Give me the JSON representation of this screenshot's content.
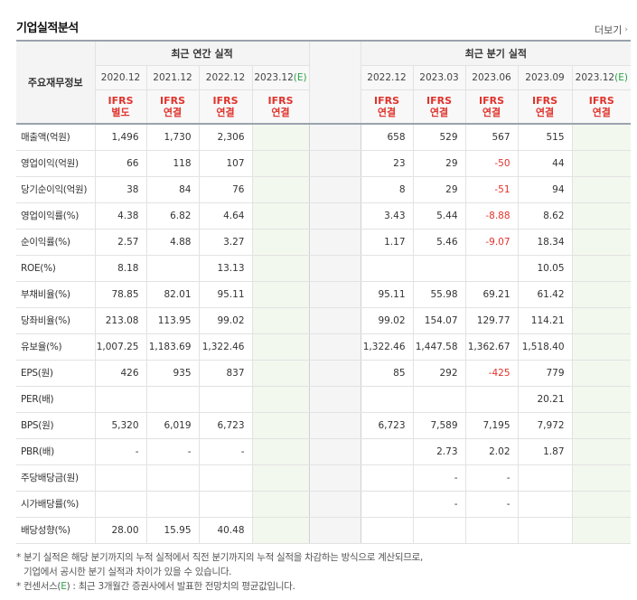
{
  "header": {
    "title": "기업실적분석",
    "more_label": "더보기"
  },
  "table": {
    "label_header": "주요재무정보",
    "annual_group": "최근 연간 실적",
    "quarterly_group": "최근 분기 실적",
    "annual_periods": [
      "2020.12",
      "2021.12",
      "2022.12",
      "2023.12"
    ],
    "annual_estimate_suffix": "(E)",
    "quarterly_periods": [
      "2022.12",
      "2023.03",
      "2023.06",
      "2023.09",
      "2023.12"
    ],
    "quarterly_estimate_suffix": "(E)",
    "annual_standards": [
      [
        "IFRS",
        "별도"
      ],
      [
        "IFRS",
        "연결"
      ],
      [
        "IFRS",
        "연결"
      ],
      [
        "IFRS",
        "연결"
      ]
    ],
    "quarterly_standards": [
      [
        "IFRS",
        "연결"
      ],
      [
        "IFRS",
        "연결"
      ],
      [
        "IFRS",
        "연결"
      ],
      [
        "IFRS",
        "연결"
      ],
      [
        "IFRS",
        "연결"
      ]
    ],
    "rows": [
      {
        "label": "매출액(억원)",
        "annual": [
          "1,496",
          "1,730",
          "2,306",
          ""
        ],
        "quarterly": [
          "658",
          "529",
          "567",
          "515",
          ""
        ]
      },
      {
        "label": "영업이익(억원)",
        "annual": [
          "66",
          "118",
          "107",
          ""
        ],
        "quarterly": [
          "23",
          "29",
          "-50",
          "44",
          ""
        ]
      },
      {
        "label": "당기순이익(억원)",
        "annual": [
          "38",
          "84",
          "76",
          ""
        ],
        "quarterly": [
          "8",
          "29",
          "-51",
          "94",
          ""
        ]
      },
      {
        "label": "영업이익률(%)",
        "annual": [
          "4.38",
          "6.82",
          "4.64",
          ""
        ],
        "quarterly": [
          "3.43",
          "5.44",
          "-8.88",
          "8.62",
          ""
        ]
      },
      {
        "label": "순이익률(%)",
        "annual": [
          "2.57",
          "4.88",
          "3.27",
          ""
        ],
        "quarterly": [
          "1.17",
          "5.46",
          "-9.07",
          "18.34",
          ""
        ]
      },
      {
        "label": "ROE(%)",
        "annual": [
          "8.18",
          "",
          "13.13",
          ""
        ],
        "quarterly": [
          "",
          "",
          "",
          "10.05",
          ""
        ]
      },
      {
        "label": "부채비율(%)",
        "annual": [
          "78.85",
          "82.01",
          "95.11",
          ""
        ],
        "quarterly": [
          "95.11",
          "55.98",
          "69.21",
          "61.42",
          ""
        ]
      },
      {
        "label": "당좌비율(%)",
        "annual": [
          "213.08",
          "113.95",
          "99.02",
          ""
        ],
        "quarterly": [
          "99.02",
          "154.07",
          "129.77",
          "114.21",
          ""
        ]
      },
      {
        "label": "유보율(%)",
        "annual": [
          "1,007.25",
          "1,183.69",
          "1,322.46",
          ""
        ],
        "quarterly": [
          "1,322.46",
          "1,447.58",
          "1,362.67",
          "1,518.40",
          ""
        ]
      },
      {
        "label": "EPS(원)",
        "annual": [
          "426",
          "935",
          "837",
          ""
        ],
        "quarterly": [
          "85",
          "292",
          "-425",
          "779",
          ""
        ]
      },
      {
        "label": "PER(배)",
        "annual": [
          "",
          "",
          "",
          ""
        ],
        "quarterly": [
          "",
          "",
          "",
          "20.21",
          ""
        ]
      },
      {
        "label": "BPS(원)",
        "annual": [
          "5,320",
          "6,019",
          "6,723",
          ""
        ],
        "quarterly": [
          "6,723",
          "7,589",
          "7,195",
          "7,972",
          ""
        ]
      },
      {
        "label": "PBR(배)",
        "annual": [
          "-",
          "-",
          "-",
          ""
        ],
        "quarterly": [
          "",
          "2.73",
          "2.02",
          "1.87",
          ""
        ]
      },
      {
        "label": "주당배당금(원)",
        "annual": [
          "",
          "",
          "",
          ""
        ],
        "quarterly": [
          "",
          "-",
          "-",
          "",
          ""
        ]
      },
      {
        "label": "시가배당률(%)",
        "annual": [
          "",
          "",
          "",
          ""
        ],
        "quarterly": [
          "",
          "-",
          "-",
          "",
          ""
        ]
      },
      {
        "label": "배당성향(%)",
        "annual": [
          "28.00",
          "15.95",
          "40.48",
          ""
        ],
        "quarterly": [
          "",
          "",
          "",
          "",
          ""
        ]
      }
    ]
  },
  "notes": {
    "line1": "* 분기 실적은 해당 분기까지의 누적 실적에서 직전 분기까지의 누적 실적을 차감하는 방식으로 계산되므로,",
    "line2": "기업에서 공시한 분기 실적과 차이가 있을 수 있습니다.",
    "line3_prefix": "* 컨센서스(",
    "line3_mark": "E",
    "line3_suffix": ") : 최근 3개월간 증권사에서 발표한 전망치의 평균값입니다."
  },
  "colors": {
    "negative": "#e0332c",
    "estimate": "#2aa146",
    "standard": "#e0332c"
  }
}
